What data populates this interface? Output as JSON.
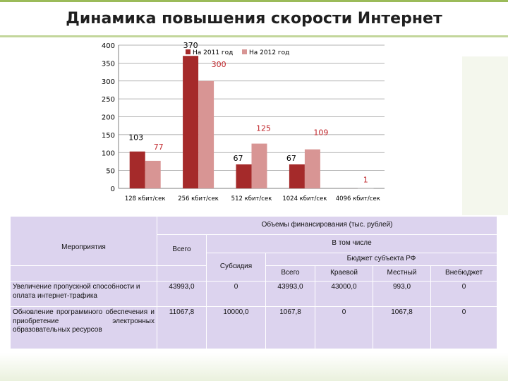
{
  "title": "Динамика повышения  скорости Интернет",
  "chart_data": {
    "type": "bar",
    "categories": [
      "128 кбит/сек",
      "256 кбит/сек",
      "512 кбит/сек",
      "1024 кбит/сек",
      "4096 кбит/сек"
    ],
    "series": [
      {
        "name": "На 2011 год",
        "values": [
          103,
          370,
          67,
          67,
          0
        ],
        "labels": [
          "103",
          "370",
          "67",
          "67",
          ""
        ],
        "color": "#a52a2a",
        "label_color": "#000000"
      },
      {
        "name": "На 2012 год",
        "values": [
          77,
          300,
          125,
          109,
          1
        ],
        "labels": [
          "77",
          "300",
          "125",
          "109",
          "1"
        ],
        "color": "#d89594",
        "label_color": "#c0262b"
      }
    ],
    "yticks": [
      "0",
      "50",
      "100",
      "150",
      "200",
      "250",
      "300",
      "350",
      "400"
    ],
    "ylim": [
      0,
      400
    ],
    "grid": true,
    "legend": "top"
  },
  "table": {
    "header_events": "Мероприятия",
    "header_funding": "Объемы финансирования (тыс. рублей)",
    "header_total": "Всего",
    "header_including": "В том числе",
    "header_subsidy": "Субсидия",
    "header_budget": "Бюджет субъекта РФ",
    "sub_headers": [
      "Всего",
      "Краевой",
      "Местный",
      "Внебюджет"
    ],
    "rows": [
      {
        "name": "Увеличение пропускной способности и оплата интернет-трафика",
        "cells": [
          "43993,0",
          "0",
          "43993,0",
          "43000,0",
          "993,0",
          "0"
        ]
      },
      {
        "name": "Обновление программного обеспечения и приобретение электронных образовательных ресурсов",
        "cells": [
          "11067,8",
          "10000,0",
          "1067,8",
          "0",
          "1067,8",
          "0"
        ]
      }
    ]
  }
}
